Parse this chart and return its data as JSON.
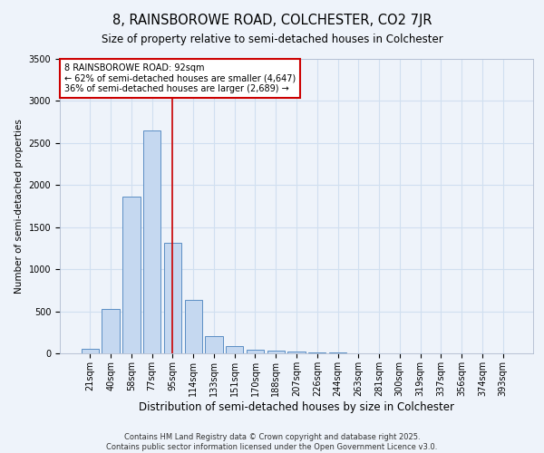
{
  "title": "8, RAINSBOROWE ROAD, COLCHESTER, CO2 7JR",
  "subtitle": "Size of property relative to semi-detached houses in Colchester",
  "xlabel": "Distribution of semi-detached houses by size in Colchester",
  "ylabel": "Number of semi-detached properties",
  "categories": [
    "21sqm",
    "40sqm",
    "58sqm",
    "77sqm",
    "95sqm",
    "114sqm",
    "133sqm",
    "151sqm",
    "170sqm",
    "188sqm",
    "207sqm",
    "226sqm",
    "244sqm",
    "263sqm",
    "281sqm",
    "300sqm",
    "319sqm",
    "337sqm",
    "356sqm",
    "374sqm",
    "393sqm"
  ],
  "values": [
    55,
    530,
    1860,
    2650,
    1310,
    640,
    200,
    90,
    45,
    30,
    20,
    10,
    10,
    5,
    5,
    5,
    3,
    3,
    2,
    2,
    2
  ],
  "bar_color": "#c5d8f0",
  "bar_edge_color": "#5b8ec4",
  "bar_edge_width": 0.7,
  "grid_color": "#d0dff0",
  "bg_color": "#eef3fa",
  "red_line_index": 4,
  "red_line_color": "#cc0000",
  "annotation_line1": "8 RAINSBOROWE ROAD: 92sqm",
  "annotation_line2": "← 62% of semi-detached houses are smaller (4,647)",
  "annotation_line3": "36% of semi-detached houses are larger (2,689) →",
  "annotation_box_color": "#ffffff",
  "annotation_border_color": "#cc0000",
  "ylim": [
    0,
    3500
  ],
  "yticks": [
    0,
    500,
    1000,
    1500,
    2000,
    2500,
    3000,
    3500
  ],
  "footer1": "Contains HM Land Registry data © Crown copyright and database right 2025.",
  "footer2": "Contains public sector information licensed under the Open Government Licence v3.0.",
  "title_fontsize": 10.5,
  "subtitle_fontsize": 8.5,
  "xlabel_fontsize": 8.5,
  "ylabel_fontsize": 7.5,
  "tick_fontsize": 7,
  "annotation_fontsize": 7,
  "footer_fontsize": 6
}
